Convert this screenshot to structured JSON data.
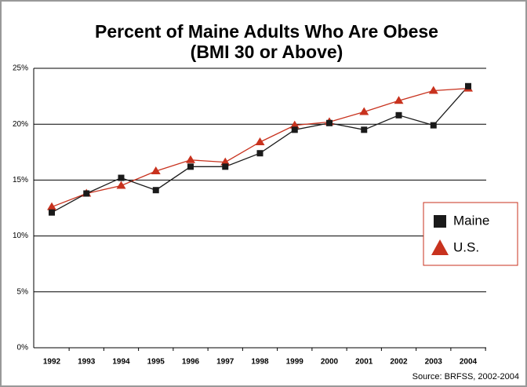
{
  "chart_data": {
    "type": "line",
    "title": [
      "Percent of Maine Adults Who Are Obese",
      "(BMI 30 or Above)"
    ],
    "source": "Source: BRFSS, 2002-2004",
    "categories": [
      "1992",
      "1993",
      "1994",
      "1995",
      "1996",
      "1997",
      "1998",
      "1999",
      "2000",
      "2001",
      "2002",
      "2003",
      "2004"
    ],
    "series": [
      {
        "name": "Maine",
        "color": "#1a1a1a",
        "marker": "square",
        "values": [
          12.1,
          13.8,
          15.2,
          14.1,
          16.2,
          16.2,
          17.4,
          19.5,
          20.1,
          19.5,
          20.8,
          19.9,
          23.4
        ]
      },
      {
        "name": "U.S.",
        "color": "#c8321e",
        "marker": "triangle",
        "values": [
          12.6,
          13.8,
          14.5,
          15.8,
          16.8,
          16.6,
          18.4,
          19.9,
          20.2,
          21.1,
          22.1,
          23.0,
          23.2
        ]
      }
    ],
    "ylim": [
      0,
      25
    ],
    "yticks": [
      {
        "value": 0,
        "label": "0%"
      },
      {
        "value": 5,
        "label": "5%"
      },
      {
        "value": 10,
        "label": "10%"
      },
      {
        "value": 15,
        "label": "15%"
      },
      {
        "value": 20,
        "label": "20%"
      },
      {
        "value": 25,
        "label": "25%"
      }
    ],
    "grid": true,
    "legend": "right"
  }
}
